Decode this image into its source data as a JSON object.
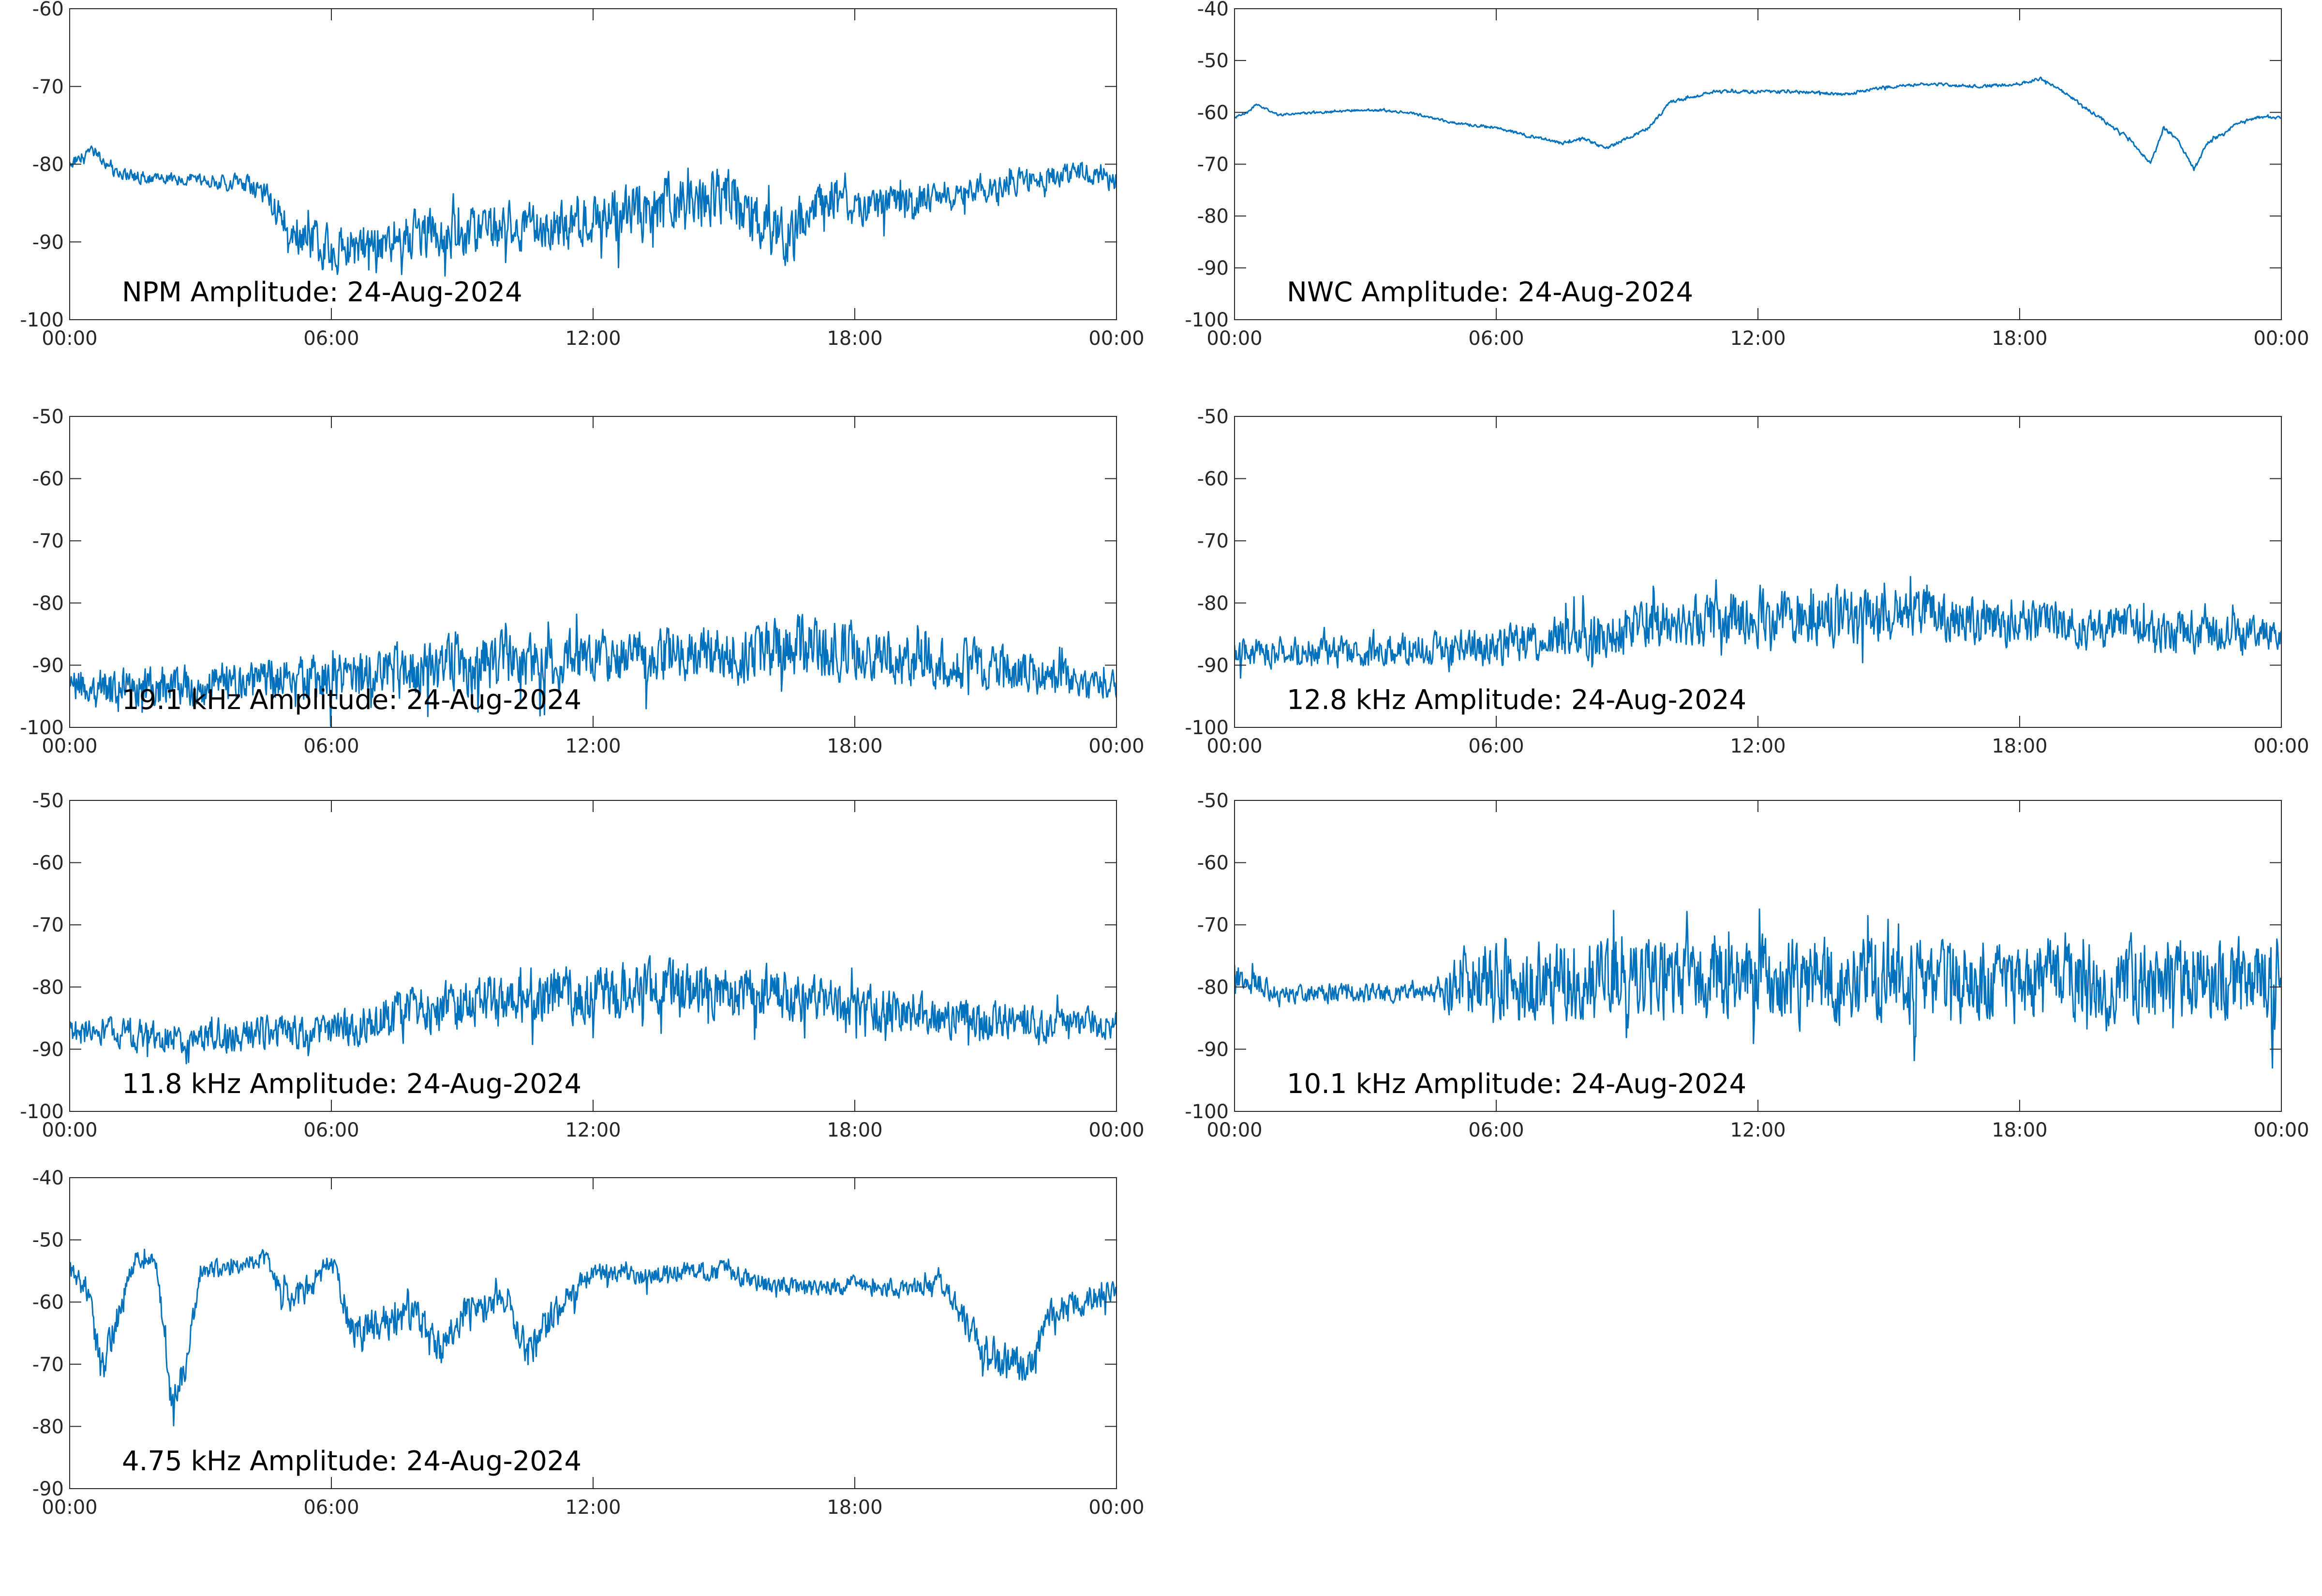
{
  "chart_data": [
    {
      "type": "line",
      "title": "NPM Amplitude: 24-Aug-2024",
      "xlabel": "",
      "ylabel": "",
      "x_ticks": [
        "00:00",
        "06:00",
        "12:00",
        "18:00",
        "00:00"
      ],
      "y_ticks": [
        "-60",
        "-70",
        "-80",
        "-90",
        "-100"
      ],
      "xlim": [
        0,
        24
      ],
      "ylim": [
        -100,
        -60
      ],
      "grid": false,
      "series": [
        {
          "color": "#0072bd",
          "x": [
            0,
            0.5,
            1,
            2,
            3,
            4,
            4.5,
            5,
            5.5,
            6,
            7,
            8,
            9,
            10,
            11,
            12,
            13,
            14,
            15,
            16,
            16.5,
            17,
            17.5,
            18,
            19,
            20,
            21,
            22,
            23,
            23.5,
            24
          ],
          "y": [
            -80,
            -78,
            -81,
            -82,
            -82,
            -82.5,
            -84,
            -88,
            -90,
            -91,
            -90,
            -89,
            -89,
            -88,
            -88,
            -87,
            -86,
            -85,
            -84,
            -88,
            -90,
            -85,
            -84,
            -86,
            -85,
            -84,
            -83,
            -82,
            -81,
            -81,
            -82
          ],
          "noise": [
            1,
            1,
            1,
            1,
            1,
            1.5,
            2,
            3,
            4,
            4,
            4,
            4,
            4,
            4,
            4,
            5,
            5,
            5,
            5,
            5,
            5,
            4,
            4,
            3,
            3,
            3,
            2.5,
            2,
            2,
            2,
            2
          ]
        }
      ]
    },
    {
      "type": "line",
      "title": "NWC Amplitude: 24-Aug-2024",
      "xlabel": "",
      "ylabel": "",
      "x_ticks": [
        "00:00",
        "06:00",
        "12:00",
        "18:00",
        "00:00"
      ],
      "y_ticks": [
        "-40",
        "-50",
        "-60",
        "-70",
        "-80",
        "-90",
        "-100"
      ],
      "xlim": [
        0,
        24
      ],
      "ylim": [
        -100,
        -40
      ],
      "grid": false,
      "series": [
        {
          "color": "#0072bd",
          "x": [
            0,
            0.3,
            0.5,
            1,
            2,
            3,
            4,
            5,
            6,
            7,
            7.5,
            8,
            8.5,
            9,
            9.5,
            10,
            11,
            12,
            13,
            14,
            15,
            16,
            17,
            18,
            18.5,
            19,
            20,
            20.5,
            21,
            21.3,
            21.6,
            22,
            22.3,
            22.7,
            23,
            23.5,
            24
          ],
          "y": [
            -61,
            -60,
            -58.5,
            -60.5,
            -60,
            -59.5,
            -60,
            -62,
            -63,
            -65,
            -66,
            -65,
            -67,
            -65,
            -63,
            -58,
            -56,
            -56,
            -56,
            -56.5,
            -55,
            -54.5,
            -55,
            -54.5,
            -53.5,
            -56,
            -62,
            -65,
            -70,
            -63,
            -65,
            -71,
            -66,
            -64,
            -62,
            -61,
            -61
          ],
          "noise": [
            0.3,
            0.3,
            0.3,
            0.3,
            0.3,
            0.3,
            0.3,
            0.3,
            0.4,
            0.4,
            0.4,
            0.4,
            0.4,
            0.4,
            0.4,
            0.4,
            0.4,
            0.4,
            0.4,
            0.4,
            0.4,
            0.4,
            0.4,
            0.4,
            0.4,
            0.4,
            0.5,
            0.5,
            0.5,
            0.5,
            0.5,
            0.5,
            0.5,
            0.5,
            0.4,
            0.4,
            0.4
          ]
        }
      ]
    },
    {
      "type": "line",
      "title": "19.1 kHz Amplitude: 24-Aug-2024",
      "xlabel": "",
      "ylabel": "",
      "x_ticks": [
        "00:00",
        "06:00",
        "12:00",
        "18:00",
        "00:00"
      ],
      "y_ticks": [
        "-50",
        "-60",
        "-70",
        "-80",
        "-90",
        "-100"
      ],
      "xlim": [
        0,
        24
      ],
      "ylim": [
        -100,
        -50
      ],
      "grid": false,
      "series": [
        {
          "color": "#0072bd",
          "x": [
            0,
            3,
            6,
            9,
            12,
            15,
            16.5,
            18,
            21,
            22.5,
            24
          ],
          "y": [
            -94,
            -93,
            -92,
            -90,
            -89,
            -88,
            -87,
            -88,
            -90,
            -92,
            -93
          ],
          "noise": [
            4,
            4.5,
            5,
            6,
            6,
            6,
            6.5,
            6,
            5,
            4,
            3
          ]
        }
      ]
    },
    {
      "type": "line",
      "title": "12.8 kHz Amplitude: 24-Aug-2024",
      "xlabel": "",
      "ylabel": "",
      "x_ticks": [
        "00:00",
        "06:00",
        "12:00",
        "18:00",
        "00:00"
      ],
      "y_ticks": [
        "-50",
        "-60",
        "-70",
        "-80",
        "-90",
        "-100"
      ],
      "xlim": [
        0,
        24
      ],
      "ylim": [
        -100,
        -50
      ],
      "grid": false,
      "series": [
        {
          "color": "#0072bd",
          "x": [
            0,
            3,
            6,
            8,
            10,
            12,
            14,
            16,
            18,
            20,
            22,
            24
          ],
          "y": [
            -88,
            -88,
            -87,
            -85,
            -83,
            -82,
            -82,
            -82,
            -83,
            -84,
            -85,
            -85
          ],
          "noise": [
            3,
            3.5,
            4,
            5,
            5.5,
            6,
            6,
            5,
            5,
            4.5,
            4,
            3
          ]
        }
      ]
    },
    {
      "type": "line",
      "title": "11.8 kHz Amplitude: 24-Aug-2024",
      "xlabel": "",
      "ylabel": "",
      "x_ticks": [
        "00:00",
        "06:00",
        "12:00",
        "18:00",
        "00:00"
      ],
      "y_ticks": [
        "-50",
        "-60",
        "-70",
        "-80",
        "-90",
        "-100"
      ],
      "xlim": [
        0,
        24
      ],
      "ylim": [
        -100,
        -50
      ],
      "grid": false,
      "series": [
        {
          "color": "#0072bd",
          "x": [
            0,
            3,
            6,
            7,
            9,
            12,
            14,
            16,
            18,
            20,
            22,
            24
          ],
          "y": [
            -87,
            -88,
            -87,
            -85,
            -83,
            -81,
            -80,
            -81,
            -83,
            -85,
            -86,
            -86
          ],
          "noise": [
            3,
            3.5,
            4,
            5,
            5.5,
            6,
            6,
            5.5,
            5,
            4.5,
            3.5,
            3
          ]
        }
      ]
    },
    {
      "type": "line",
      "title": "10.1 kHz Amplitude: 24-Aug-2024",
      "xlabel": "",
      "ylabel": "",
      "x_ticks": [
        "00:00",
        "06:00",
        "12:00",
        "18:00",
        "00:00"
      ],
      "y_ticks": [
        "-50",
        "-60",
        "-70",
        "-80",
        "-90",
        "-100"
      ],
      "xlim": [
        0,
        24
      ],
      "ylim": [
        -100,
        -50
      ],
      "grid": false,
      "series": [
        {
          "color": "#0072bd",
          "x": [
            0,
            1,
            2,
            3,
            4,
            4.7,
            5,
            6,
            9,
            12,
            15,
            18,
            21,
            24
          ],
          "y": [
            -78,
            -81,
            -81,
            -81,
            -81,
            -81,
            -80,
            -79,
            -79,
            -79,
            -79,
            -79,
            -79,
            -78
          ],
          "noise": [
            3,
            2,
            2,
            2,
            2,
            2,
            8,
            9,
            9,
            9,
            9,
            9,
            9,
            9
          ]
        }
      ]
    },
    {
      "type": "line",
      "title": "4.75 kHz Amplitude: 24-Aug-2024",
      "xlabel": "",
      "ylabel": "",
      "x_ticks": [
        "00:00",
        "06:00",
        "12:00",
        "18:00",
        "00:00"
      ],
      "y_ticks": [
        "-40",
        "-50",
        "-60",
        "-70",
        "-80",
        "-90"
      ],
      "xlim": [
        0,
        24
      ],
      "ylim": [
        -90,
        -40
      ],
      "grid": false,
      "series": [
        {
          "color": "#0072bd",
          "x": [
            0,
            0.4,
            0.7,
            1,
            1.5,
            2,
            2.3,
            2.6,
            3,
            4,
            4.5,
            5,
            5.5,
            6,
            6.5,
            7,
            8,
            8.5,
            9,
            10,
            10.5,
            11,
            12,
            13,
            14,
            15,
            16,
            17,
            18,
            19,
            20,
            21,
            21.5,
            22,
            22.5,
            23,
            24
          ],
          "y": [
            -55,
            -58,
            -70,
            -65,
            -53,
            -54,
            -75,
            -72,
            -55,
            -54,
            -53,
            -60,
            -58,
            -53,
            -65,
            -63,
            -62,
            -68,
            -62,
            -60,
            -68,
            -63,
            -55,
            -56,
            -55,
            -55,
            -57,
            -58,
            -57,
            -58,
            -57,
            -68,
            -70,
            -70,
            -62,
            -60,
            -58
          ],
          "noise": [
            2,
            3,
            4,
            4,
            2,
            2,
            4,
            4,
            2,
            2,
            2,
            3,
            3,
            2,
            4,
            4,
            4,
            4,
            4,
            3,
            4,
            4,
            2,
            2,
            2,
            2,
            2,
            2,
            2,
            2,
            2,
            4,
            4,
            4,
            3,
            3,
            3
          ]
        }
      ]
    }
  ]
}
